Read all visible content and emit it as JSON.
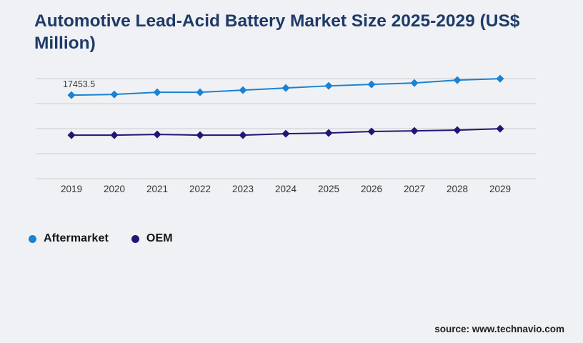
{
  "title": "Automotive Lead-Acid Battery Market Size 2025-2029 (US$ Million)",
  "source": "source: www.technavio.com",
  "colors": {
    "background": "#f0f1f4",
    "title": "#1e3a68",
    "gridline": "#cdcdcd",
    "tick_label": "#333333",
    "data_label": "#3a3a3a",
    "aftermarket": "#1a82d2",
    "oem": "#1e1874"
  },
  "legend": {
    "items": [
      {
        "label": "Aftermarket",
        "color": "#1a82d2"
      },
      {
        "label": "OEM",
        "color": "#1e1874"
      }
    ]
  },
  "chart_data": {
    "type": "line",
    "title": "Automotive Lead-Acid Battery Market Size 2025-2029 (US$ Million)",
    "categories": [
      "2019",
      "2020",
      "2021",
      "2022",
      "2023",
      "2024",
      "2025",
      "2026",
      "2027",
      "2028",
      "2029"
    ],
    "series": [
      {
        "name": "Aftermarket",
        "color": "#1a82d2",
        "values": [
          17453.5,
          17600,
          18040,
          18040,
          18480,
          18920,
          19360,
          19660,
          19950,
          20540,
          20830
        ]
      },
      {
        "name": "OEM",
        "color": "#1e1874",
        "values": [
          9240,
          9240,
          9390,
          9240,
          9240,
          9530,
          9680,
          9980,
          10120,
          10270,
          10560
        ]
      }
    ],
    "only_labeled_value_note": "Only the 2019 Aftermarket point carries a printed data label; other values are estimated from pixel positions.",
    "data_label": {
      "series": "Aftermarket",
      "category": "2019",
      "text": "17453.5"
    },
    "xlabel": "",
    "ylabel": "",
    "ylim": [
      0,
      23500
    ],
    "grid": "horizontal",
    "y_axis_labels_visible": false,
    "legend_position": "bottom-left",
    "marker": "diamond"
  }
}
